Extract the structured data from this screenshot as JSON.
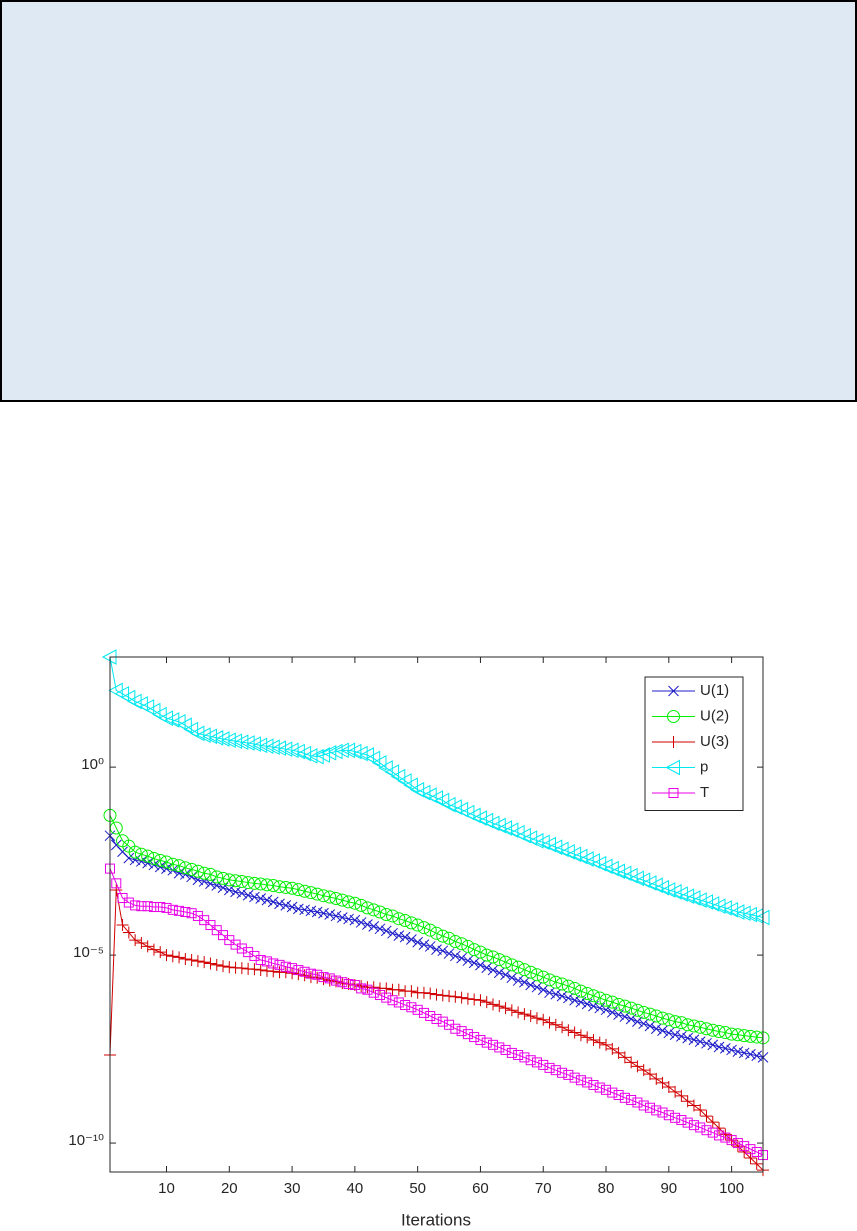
{
  "chart_data": {
    "type": "line",
    "xlabel": "Iterations",
    "log_y": true,
    "grid": false,
    "legend": "northeast",
    "x": [
      1,
      2,
      3,
      4,
      5,
      6,
      7,
      8,
      9,
      10,
      11,
      12,
      13,
      14,
      15,
      16,
      17,
      18,
      19,
      20,
      21,
      22,
      23,
      24,
      25,
      26,
      27,
      28,
      29,
      30,
      31,
      32,
      33,
      34,
      35,
      36,
      37,
      38,
      39,
      40,
      41,
      42,
      43,
      44,
      45,
      46,
      47,
      48,
      49,
      50,
      51,
      52,
      53,
      54,
      55,
      56,
      57,
      58,
      59,
      60,
      61,
      62,
      63,
      64,
      65,
      66,
      67,
      68,
      69,
      70,
      71,
      72,
      73,
      74,
      75,
      76,
      77,
      78,
      79,
      80,
      81,
      82,
      83,
      84,
      85,
      86,
      87,
      88,
      89,
      90,
      91,
      92,
      93,
      94,
      95,
      96,
      97,
      98,
      99,
      100,
      101,
      102,
      103,
      104,
      105
    ],
    "xlim": [
      1,
      105
    ],
    "xticks": [
      10,
      20,
      30,
      40,
      50,
      60,
      70,
      80,
      90,
      100
    ],
    "ylim": [
      1.7e-11,
      850
    ],
    "yticks": [
      {
        "value": 1e-10,
        "label": "10⁻¹⁰"
      },
      {
        "value": 1e-05,
        "label": "10⁻⁵"
      },
      {
        "value": 1,
        "label": "10⁰"
      }
    ],
    "series": [
      {
        "name": "U(1)",
        "color": "#1c1cc8",
        "marker": "x",
        "values": [
          0.015,
          0.0085,
          0.0056,
          0.0038,
          0.0034,
          0.0031,
          0.0028,
          0.0025,
          0.0022,
          0.002,
          0.0018,
          0.0015,
          0.0014,
          0.0012,
          0.001,
          0.00091,
          0.00079,
          0.00071,
          0.00062,
          0.00054,
          0.00048,
          0.00044,
          0.00039,
          0.00035,
          0.00032,
          0.00029,
          0.00026,
          0.00023,
          0.00021,
          0.00019,
          0.00017,
          0.00016,
          0.00015,
          0.00014,
          0.00013,
          0.00012,
          0.00011,
          0.0001,
          9.1e-05,
          8.5e-05,
          7.4e-05,
          6.5e-05,
          5.8e-05,
          5e-05,
          4.4e-05,
          3.8e-05,
          3.3e-05,
          3e-05,
          2.6e-05,
          2.2e-05,
          1.9e-05,
          1.7e-05,
          1.4e-05,
          1.3e-05,
          1.1e-05,
          9.5e-06,
          8.3e-06,
          7.1e-06,
          6.2e-06,
          5.4e-06,
          4.6e-06,
          4e-06,
          3.4e-06,
          3e-06,
          2.5e-06,
          2.1e-06,
          1.9e-06,
          1.6e-06,
          1.4e-06,
          1.2e-06,
          1e-06,
          9.1e-07,
          8.1e-07,
          7.2e-07,
          6.3e-07,
          5.6e-07,
          5e-07,
          4.4e-07,
          3.9e-07,
          3.5e-07,
          3e-07,
          2.6e-07,
          2.3e-07,
          2e-07,
          1.7e-07,
          1.5e-07,
          1.3e-07,
          1.1e-07,
          9.8e-08,
          8.5e-08,
          7.6e-08,
          6.9e-08,
          6.2e-08,
          5.6e-08,
          5e-08,
          4.5e-08,
          4.1e-08,
          3.6e-08,
          3.3e-08,
          3e-08,
          2.7e-08,
          2.5e-08,
          2.3e-08,
          2.1e-08,
          1.9e-08
        ]
      },
      {
        "name": "U(2)",
        "color": "#00ee00",
        "marker": "o",
        "values": [
          0.052,
          0.024,
          0.011,
          0.0079,
          0.0055,
          0.0048,
          0.0043,
          0.0037,
          0.0033,
          0.003,
          0.0026,
          0.0024,
          0.0021,
          0.0019,
          0.0017,
          0.0015,
          0.0014,
          0.0012,
          0.0011,
          0.001,
          0.00095,
          0.00091,
          0.00085,
          0.00081,
          0.00078,
          0.00074,
          0.00071,
          0.00066,
          0.00063,
          0.0006,
          0.00055,
          0.0005,
          0.00046,
          0.00042,
          0.00038,
          0.00035,
          0.00032,
          0.00029,
          0.00026,
          0.00024,
          0.00021,
          0.00018,
          0.00016,
          0.00014,
          0.00012,
          0.00011,
          9.3e-05,
          8.3e-05,
          7.2e-05,
          6.3e-05,
          5.4e-05,
          4.6e-05,
          3.8e-05,
          3.2e-05,
          2.8e-05,
          2.3e-05,
          2e-05,
          1.7e-05,
          1.4e-05,
          1.2e-05,
          1e-05,
          8.9e-06,
          7.6e-06,
          6.5e-06,
          5.5e-06,
          4.8e-06,
          4.1e-06,
          3.5e-06,
          3e-06,
          2.6e-06,
          2.2e-06,
          1.9e-06,
          1.7e-06,
          1.5e-06,
          1.3e-06,
          1.1e-06,
          9.5e-07,
          8.3e-07,
          7.2e-07,
          6.3e-07,
          5.6e-07,
          4.9e-07,
          4.4e-07,
          3.9e-07,
          3.4e-07,
          3e-07,
          2.7e-07,
          2.4e-07,
          2.1e-07,
          1.9e-07,
          1.7e-07,
          1.6e-07,
          1.4e-07,
          1.3e-07,
          1.2e-07,
          1.1e-07,
          1e-07,
          9.3e-08,
          8.7e-08,
          7.9e-08,
          7.6e-08,
          7.2e-08,
          6.9e-08,
          6.6e-08,
          6.3e-08
        ]
      },
      {
        "name": "U(3)",
        "color": "#d00000",
        "marker": "+",
        "values": [
          2.2e-08,
          0.00054,
          6.3e-05,
          4e-05,
          2.5e-05,
          2.1e-05,
          1.7e-05,
          1.4e-05,
          1.2e-05,
          1e-05,
          9.3e-06,
          8.7e-06,
          7.9e-06,
          7.4e-06,
          6.9e-06,
          6.5e-06,
          6e-06,
          5.5e-06,
          5.1e-06,
          4.8e-06,
          4.6e-06,
          4.5e-06,
          4.3e-06,
          4.2e-06,
          4e-06,
          3.8e-06,
          3.7e-06,
          3.5e-06,
          3.5e-06,
          3.3e-06,
          3.1e-06,
          2.9e-06,
          2.6e-06,
          2.5e-06,
          2.3e-06,
          2.1e-06,
          2e-06,
          1.8e-06,
          1.7e-06,
          1.6e-06,
          1.5e-06,
          1.4e-06,
          1.4e-06,
          1.3e-06,
          1.3e-06,
          1.2e-06,
          1.2e-06,
          1.1e-06,
          1.1e-06,
          1e-06,
          1e-06,
          9.5e-07,
          8.9e-07,
          8.5e-07,
          8.1e-07,
          7.8e-07,
          7.4e-07,
          6.9e-07,
          6.6e-07,
          6.3e-07,
          5.6e-07,
          4.9e-07,
          4.4e-07,
          3.9e-07,
          3.4e-07,
          3e-07,
          2.7e-07,
          2.4e-07,
          2.1e-07,
          1.9e-07,
          1.6e-07,
          1.4e-07,
          1.2e-07,
          1e-07,
          8.7e-08,
          7.4e-08,
          6.5e-08,
          5.5e-08,
          4.7e-08,
          4.1e-08,
          3.2e-08,
          2.5e-08,
          1.9e-08,
          1.4e-08,
          1.1e-08,
          8.7e-09,
          6.8e-09,
          5.1e-09,
          4e-09,
          3.1e-09,
          2.3e-09,
          1.8e-09,
          1.3e-09,
          1e-09,
          7.6e-10,
          5.2e-10,
          3.6e-10,
          2.5e-10,
          1.7e-10,
          1.2e-10,
          8.3e-11,
          5.8e-11,
          4e-11,
          2.8e-11,
          1.9e-11
        ]
      },
      {
        "name": "p",
        "color": "#00e8f0",
        "marker": "<",
        "values": [
          850,
          110,
          89,
          71,
          56,
          48,
          40,
          32,
          25,
          20,
          18,
          16,
          13,
          10,
          7.9,
          7.1,
          6.6,
          6.0,
          5.6,
          5.2,
          4.9,
          4.6,
          4.4,
          4.1,
          3.8,
          3.6,
          3.4,
          3.2,
          3.0,
          2.8,
          2.6,
          2.3,
          2.0,
          1.9,
          2.1,
          2.4,
          2.6,
          2.8,
          2.8,
          2.6,
          2.3,
          2.1,
          1.7,
          1.3,
          0.95,
          0.74,
          0.56,
          0.43,
          0.33,
          0.25,
          0.21,
          0.18,
          0.15,
          0.13,
          0.1,
          0.087,
          0.074,
          0.062,
          0.052,
          0.044,
          0.038,
          0.032,
          0.028,
          0.024,
          0.021,
          0.018,
          0.015,
          0.013,
          0.011,
          0.01,
          0.0087,
          0.0074,
          0.0065,
          0.0056,
          0.0048,
          0.0042,
          0.0036,
          0.0032,
          0.0027,
          0.0023,
          0.002,
          0.0017,
          0.0015,
          0.0013,
          0.0011,
          0.00098,
          0.00083,
          0.00072,
          0.00062,
          0.00054,
          0.00048,
          0.00042,
          0.00037,
          0.00033,
          0.00029,
          0.00026,
          0.00023,
          0.0002,
          0.00018,
          0.00016,
          0.00014,
          0.00013,
          0.00012,
          0.00011,
          0.0001
        ]
      },
      {
        "name": "T",
        "color": "#e800e8",
        "marker": "s",
        "values": [
          0.002,
          0.00081,
          0.00033,
          0.00025,
          0.00021,
          0.0002,
          0.0002,
          0.00019,
          0.00019,
          0.00018,
          0.00016,
          0.00015,
          0.00014,
          0.00013,
          0.00011,
          8.5e-05,
          6.3e-05,
          4.6e-05,
          3.4e-05,
          2.5e-05,
          1.9e-05,
          1.5e-05,
          1.2e-05,
          9.5e-06,
          7.4e-06,
          6.8e-06,
          6e-06,
          5.5e-06,
          4.9e-06,
          4.5e-06,
          4e-06,
          3.6e-06,
          3.2e-06,
          3e-06,
          2.6e-06,
          2.4e-06,
          2.1e-06,
          1.9e-06,
          1.7e-06,
          1.6e-06,
          1.3e-06,
          1.2e-06,
          1e-06,
          8.7e-07,
          7.4e-07,
          6.3e-07,
          5.5e-07,
          4.7e-07,
          4.1e-07,
          3.5e-07,
          2.9e-07,
          2.4e-07,
          2e-07,
          1.7e-07,
          1.4e-07,
          1.1e-07,
          9.5e-08,
          7.9e-08,
          6.6e-08,
          5.5e-08,
          4.7e-08,
          4.1e-08,
          3.5e-08,
          3e-08,
          2.5e-08,
          2.2e-08,
          1.9e-08,
          1.6e-08,
          1.4e-08,
          1.2e-08,
          1e-08,
          8.7e-09,
          7.4e-09,
          6.5e-09,
          5.5e-09,
          4.7e-09,
          4.1e-09,
          3.5e-09,
          3e-09,
          2.6e-09,
          2.2e-09,
          1.9e-09,
          1.6e-09,
          1.4e-09,
          1.2e-09,
          1e-09,
          8.7e-10,
          7.4e-10,
          6.5e-10,
          5.5e-10,
          4.7e-10,
          4.1e-10,
          3.5e-10,
          3e-10,
          2.6e-10,
          2.2e-10,
          1.9e-10,
          1.6e-10,
          1.4e-10,
          1.2e-10,
          1e-10,
          8.3e-11,
          6.9e-11,
          5.8e-11,
          4.8e-11
        ]
      }
    ]
  }
}
